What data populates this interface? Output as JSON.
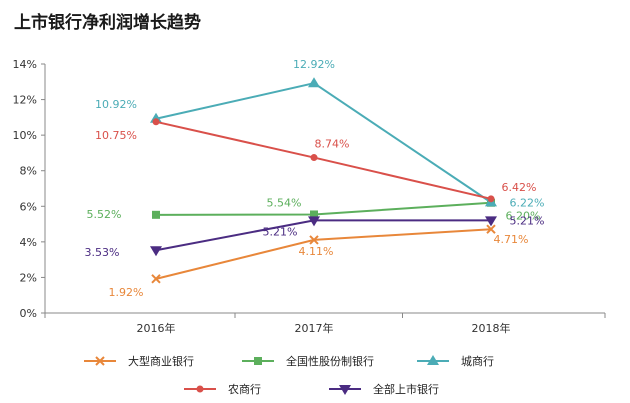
{
  "title": "上市银行净利润增长趋势",
  "chart_data": {
    "type": "line",
    "title": "上市银行净利润增长趋势",
    "categories": [
      "2016年",
      "2017年",
      "2018年"
    ],
    "ylim": [
      0,
      14
    ],
    "yticks": [
      "0%",
      "2%",
      "4%",
      "6%",
      "8%",
      "10%",
      "12%",
      "14%"
    ],
    "grid": false,
    "legend_position": "bottom",
    "series": [
      {
        "name": "大型商业银行",
        "values": [
          1.92,
          4.11,
          4.71
        ],
        "labels": [
          "1.92%",
          "4.11%",
          "4.71%"
        ],
        "color": "#E8873A",
        "marker": "x"
      },
      {
        "name": "全国性股份制银行",
        "values": [
          5.52,
          5.54,
          6.2
        ],
        "labels": [
          "5.52%",
          "5.54%",
          "6.20%"
        ],
        "color": "#5CAF5C",
        "marker": "square"
      },
      {
        "name": "城商行",
        "values": [
          10.92,
          12.92,
          6.22
        ],
        "labels": [
          "10.92%",
          "12.92%",
          "6.22%"
        ],
        "color": "#4BACB6",
        "marker": "triangle-up"
      },
      {
        "name": "农商行",
        "values": [
          10.75,
          8.74,
          6.42
        ],
        "labels": [
          "10.75%",
          "8.74%",
          "6.42%"
        ],
        "color": "#D9504A",
        "marker": "circle"
      },
      {
        "name": "全部上市银行",
        "values": [
          3.53,
          5.21,
          5.21
        ],
        "labels": [
          "3.53%",
          "5.21%",
          "5.21%"
        ],
        "color": "#4B2C82",
        "marker": "triangle-down"
      }
    ]
  }
}
